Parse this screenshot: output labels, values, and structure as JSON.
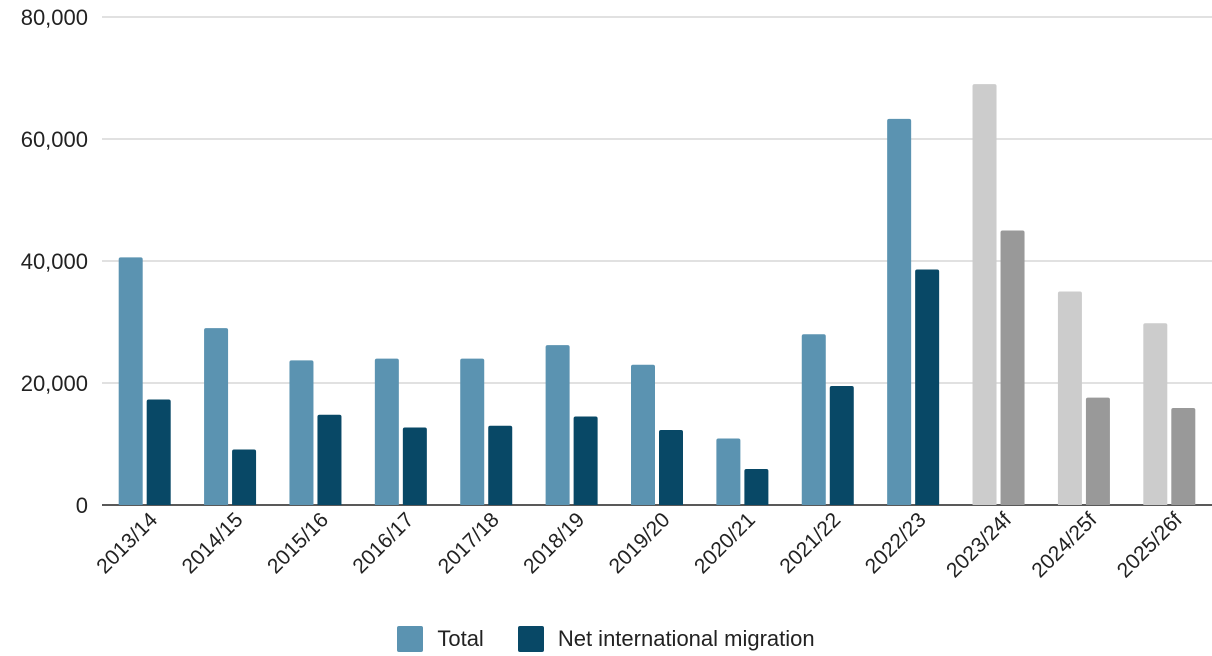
{
  "chart_data": {
    "type": "bar",
    "categories": [
      "2013/14",
      "2014/15",
      "2015/16",
      "2016/17",
      "2017/18",
      "2018/19",
      "2019/20",
      "2020/21",
      "2021/22",
      "2022/23",
      "2023/24f",
      "2024/25f",
      "2025/26f"
    ],
    "series": [
      {
        "name": "Total",
        "values": [
          40600,
          29000,
          23700,
          24000,
          24000,
          26200,
          23000,
          10900,
          28000,
          63300,
          69000,
          35000,
          29800
        ]
      },
      {
        "name": "Net international migration",
        "values": [
          17300,
          9100,
          14800,
          12700,
          13000,
          14500,
          12300,
          5900,
          19500,
          38600,
          45000,
          17600,
          15900
        ]
      }
    ],
    "forecast_from_index": 10,
    "colors": {
      "total": "#5b93b1",
      "net": "#084866",
      "total_forecast": "#cccccc",
      "net_forecast": "#999999",
      "grid": "#cfcfcf",
      "axis": "#222222"
    },
    "ylim": [
      0,
      80000
    ],
    "yticks": [
      0,
      20000,
      40000,
      60000,
      80000
    ],
    "ytick_labels": [
      "0",
      "20,000",
      "40,000",
      "60,000",
      "80,000"
    ],
    "grid": true,
    "legend_position": "bottom-center",
    "title": "",
    "xlabel": "",
    "ylabel": ""
  },
  "legend": {
    "total_label": "Total",
    "net_label": "Net international migration"
  }
}
